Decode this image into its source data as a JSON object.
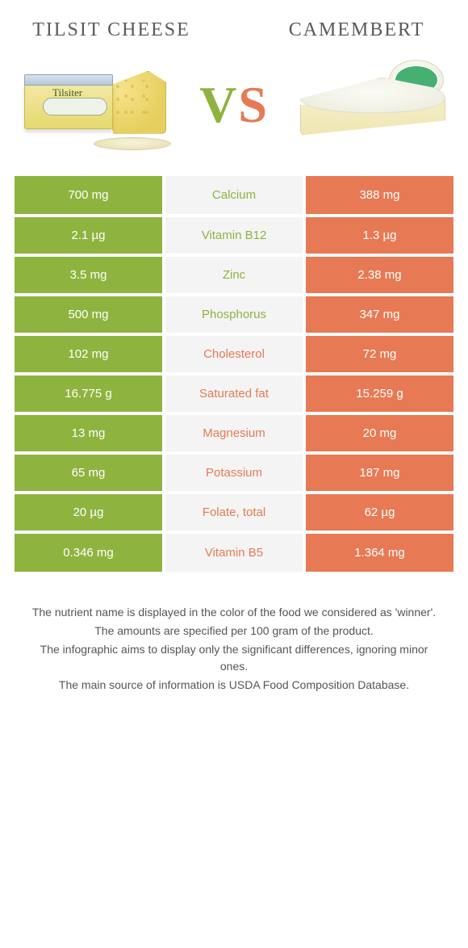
{
  "colors": {
    "green": "#8fb33f",
    "orange": "#e77a54",
    "mid_bg": "#f4f4f4",
    "row_gap": "#ffffff"
  },
  "header": {
    "left_title": "TILSIT CHEESE",
    "right_title": "CAMEMBERT",
    "vs": "VS"
  },
  "nutrients": [
    {
      "name": "Calcium",
      "left": "700 mg",
      "right": "388 mg",
      "winner": "left"
    },
    {
      "name": "Vitamin B12",
      "left": "2.1 µg",
      "right": "1.3 µg",
      "winner": "left"
    },
    {
      "name": "Zinc",
      "left": "3.5 mg",
      "right": "2.38 mg",
      "winner": "left"
    },
    {
      "name": "Phosphorus",
      "left": "500 mg",
      "right": "347 mg",
      "winner": "left"
    },
    {
      "name": "Cholesterol",
      "left": "102 mg",
      "right": "72 mg",
      "winner": "right"
    },
    {
      "name": "Saturated fat",
      "left": "16.775 g",
      "right": "15.259 g",
      "winner": "right"
    },
    {
      "name": "Magnesium",
      "left": "13 mg",
      "right": "20 mg",
      "winner": "right"
    },
    {
      "name": "Potassium",
      "left": "65 mg",
      "right": "187 mg",
      "winner": "right"
    },
    {
      "name": "Folate, total",
      "left": "20 µg",
      "right": "62 µg",
      "winner": "right"
    },
    {
      "name": "Vitamin B5",
      "left": "0.346 mg",
      "right": "1.364 mg",
      "winner": "right"
    }
  ],
  "notes": [
    "The nutrient name is displayed in the color of the food we considered as 'winner'.",
    "The amounts are specified per 100 gram of the product.",
    "The infographic aims to display only the significant differences, ignoring minor ones.",
    "The main source of information is USDA Food Composition Database."
  ],
  "package_label": "Tilsiter"
}
